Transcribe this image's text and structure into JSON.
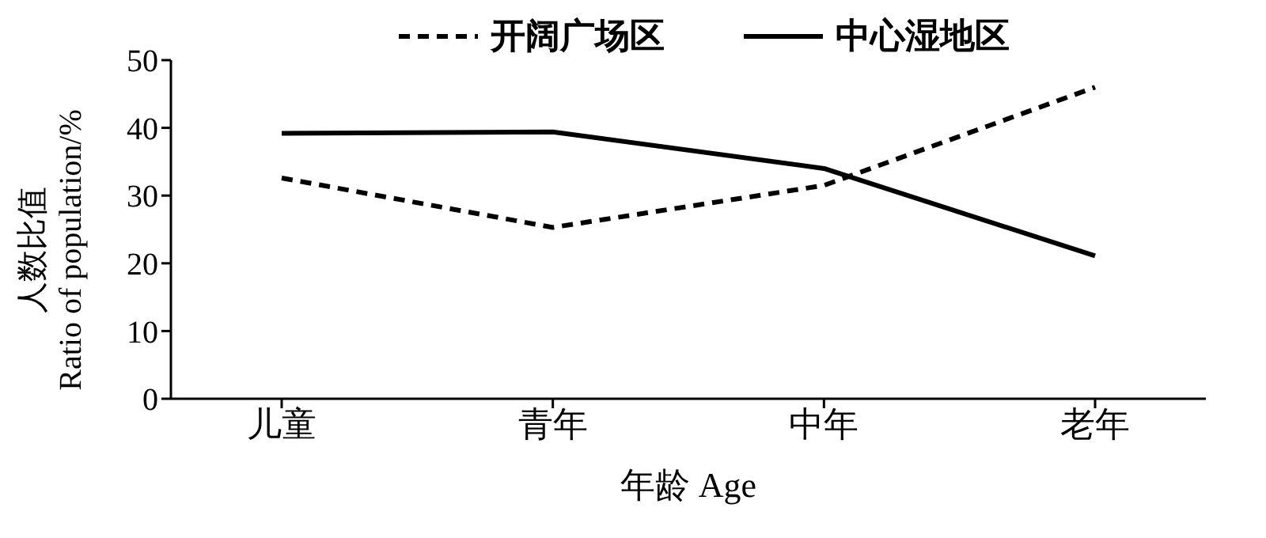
{
  "chart_data": {
    "type": "line",
    "categories": [
      "儿童",
      "青年",
      "中年",
      "老年"
    ],
    "xlabel": "年龄 Age",
    "ylabel": "人数比值\nRatio of population/%",
    "ylim": [
      0,
      50
    ],
    "yticks": [
      0,
      10,
      20,
      30,
      40,
      50
    ],
    "grid": false,
    "legend": "top",
    "marker": "none",
    "series": [
      {
        "name": "开阔广场区",
        "color": "#000000",
        "line_style": "dashed",
        "values": [
          32.6,
          25.3,
          31.5,
          46
        ]
      },
      {
        "name": "中心湿地区",
        "color": "#000000",
        "line_style": "solid",
        "values": [
          39.2,
          39.4,
          34,
          21.1
        ]
      }
    ]
  }
}
